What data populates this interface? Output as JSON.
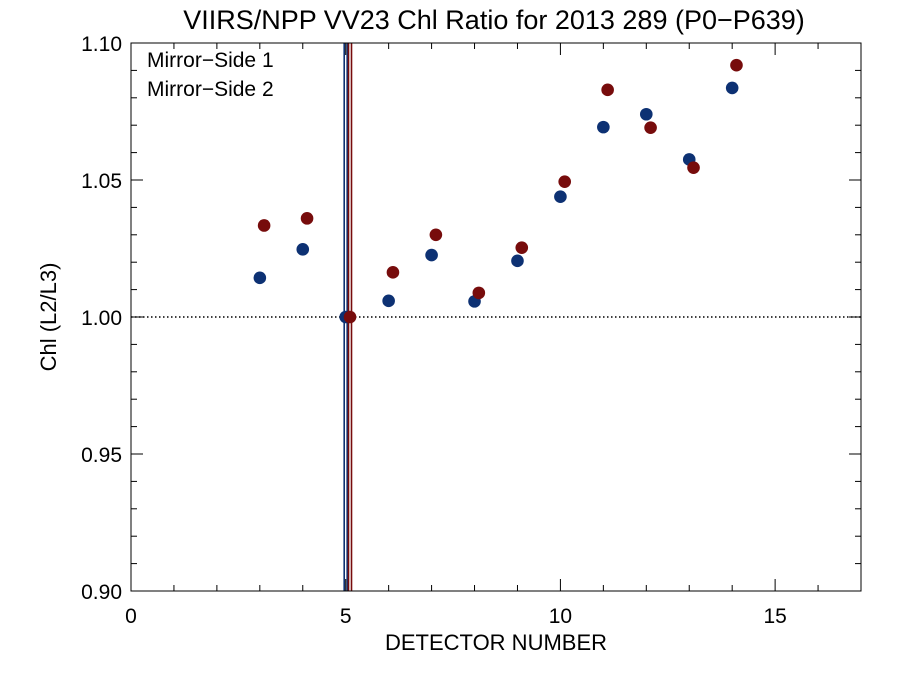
{
  "chart_data": {
    "type": "scatter",
    "title": "VIIRS/NPP VV23 Chl Ratio for 2013 289 (P0−P639)",
    "xlabel": "DETECTOR NUMBER",
    "ylabel": "Chl (L2/L3)",
    "xlim": [
      0,
      17
    ],
    "ylim": [
      0.9,
      1.1
    ],
    "x_ticks": [
      "0",
      "5",
      "10",
      "15"
    ],
    "y_ticks": [
      "0.90",
      "0.95",
      "1.00",
      "1.05",
      "1.10"
    ],
    "reference_line_y": 1.0,
    "legend_position": "top-left",
    "series": [
      {
        "name": "Mirror−Side 1",
        "color": "#0d3173",
        "marker_line_x": 5.0,
        "x": [
          3,
          4,
          5,
          6,
          7,
          8,
          9,
          10,
          11,
          12,
          13,
          14
        ],
        "y": [
          1.0143,
          1.0247,
          1.0,
          1.0059,
          1.0226,
          1.0057,
          1.0205,
          1.0439,
          1.0693,
          1.074,
          1.0575,
          1.0836
        ]
      },
      {
        "name": "Mirror−Side 2",
        "color": "#770c0c",
        "marker_line_x": 5.1,
        "x": [
          3.1,
          4.1,
          5.1,
          6.1,
          7.1,
          8.1,
          9.1,
          10.1,
          11.1,
          12.1,
          13.1,
          14.1
        ],
        "y": [
          1.0334,
          1.036,
          1.0,
          1.0163,
          1.03,
          1.0088,
          1.0253,
          1.0494,
          1.0829,
          1.0691,
          1.0545,
          1.0919
        ]
      }
    ]
  }
}
